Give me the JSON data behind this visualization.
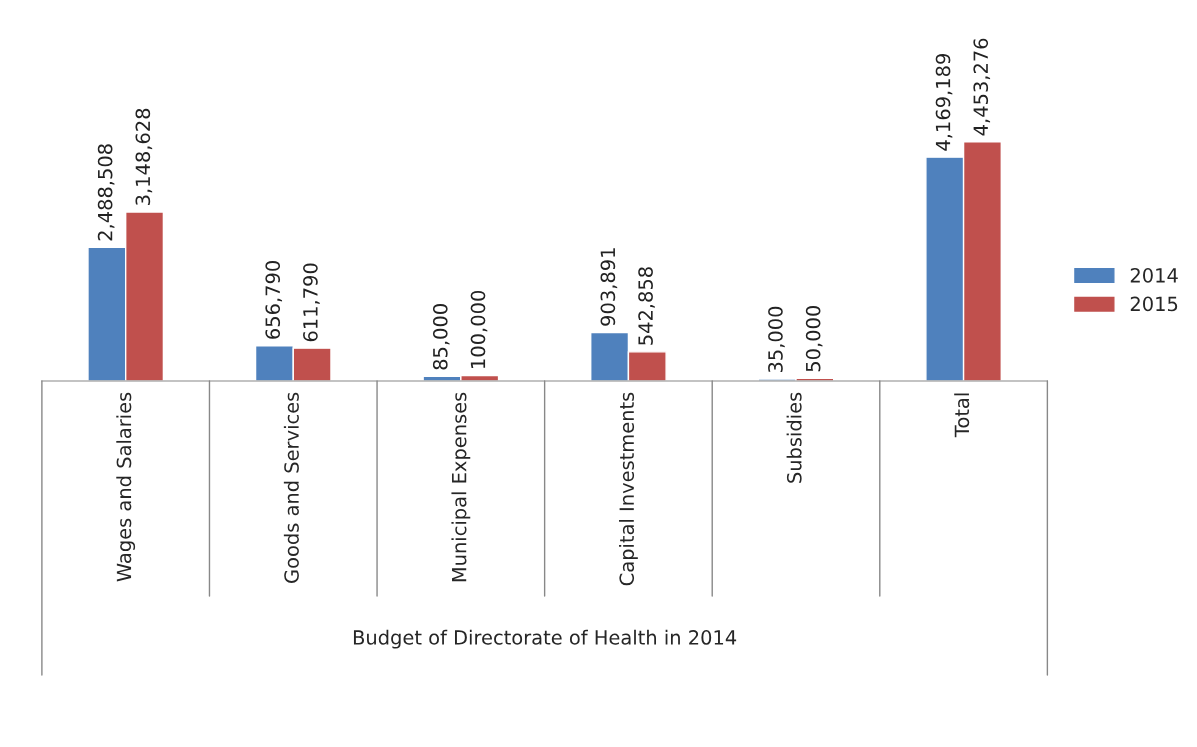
{
  "chart_data": {
    "type": "bar",
    "xlabel": "Budget of Directorate of Health in 2014",
    "categories": [
      "Wages and Salaries",
      "Goods and Services",
      "Municipal Expenses",
      "Capital Investments",
      "Subsidies",
      "Total"
    ],
    "series": [
      {
        "name": "2014",
        "color": "#4f81bd",
        "values": [
          2488508,
          656790,
          85000,
          903891,
          35000,
          4169189
        ],
        "value_labels": [
          "2,488,508",
          "656,790",
          "85,000",
          "903,891",
          "35,000",
          "4,169,189"
        ]
      },
      {
        "name": "2015",
        "color": "#c0504d",
        "values": [
          3148628,
          611790,
          100000,
          542858,
          50000,
          4453276
        ],
        "value_labels": [
          "3,148,628",
          "611,790",
          "100,000",
          "542,858",
          "50,000",
          "4,453,276"
        ]
      }
    ],
    "legend": "right"
  }
}
